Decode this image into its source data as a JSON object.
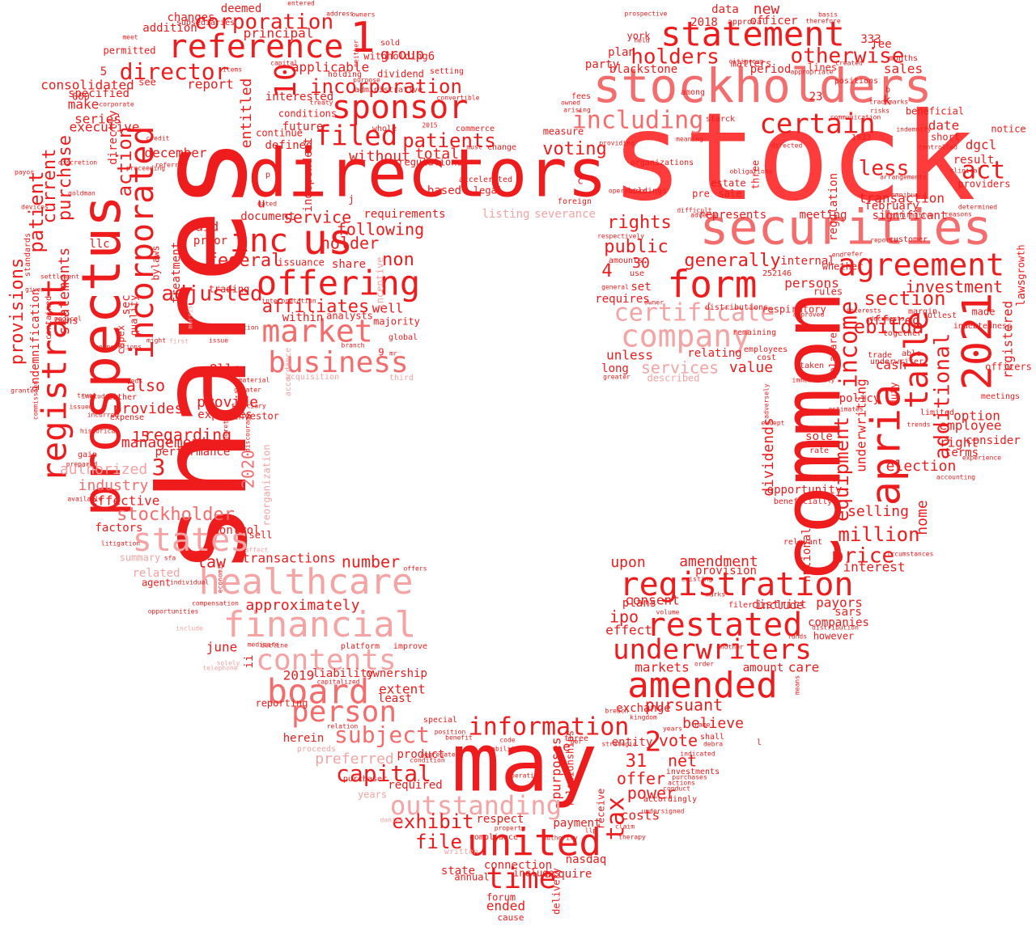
{
  "palette": {
    "red": "#ee1c1c",
    "bright": "#ff3b3b",
    "mid": "#f56c6c",
    "light": "#f5a3a3",
    "pale": "#f8c7c7"
  },
  "words": [
    "shares",
    "stock",
    "directors",
    "common",
    "prospectus",
    "stockholders",
    "securities",
    "may",
    "statement",
    "registrant",
    "reference",
    "apria",
    "incorporated",
    "2021",
    "us",
    "inc",
    "sponsor",
    "agreement",
    "form",
    "certain",
    "united",
    "registration",
    "amended",
    "restated",
    "underwriters",
    "healthcare",
    "financial",
    "offering",
    "market",
    "business",
    "states",
    "board",
    "person",
    "contents",
    "information",
    "company",
    "certificate",
    "including",
    "otherwise",
    "corporation",
    "director",
    "incorporation",
    "filed",
    "patients",
    "time",
    "outstanding",
    "subject",
    "capital",
    "exhibit",
    "file",
    "tax",
    "income",
    "table",
    "equipment",
    "million",
    "price",
    "section",
    "additional",
    "ebitda",
    "investment",
    "act",
    "less",
    "voting",
    "holders",
    "10",
    "1",
    "2",
    "3",
    "4",
    "30",
    "31",
    "2020",
    "2019",
    "adjusted",
    "affiliates",
    "also",
    "service",
    "federal",
    "non",
    "holder",
    "following",
    "public",
    "rights",
    "generally",
    "internal",
    "services",
    "value",
    "unless",
    "cash",
    "election",
    "selling",
    "dividends",
    "home",
    "management",
    "industry",
    "stockholder",
    "provide",
    "provides",
    "purchase",
    "current",
    "patient",
    "action",
    "directly",
    "provisions",
    "statements",
    "indemnification",
    "authorized",
    "effective",
    "factors",
    "summary",
    "related",
    "agent",
    "law",
    "transactions",
    "number",
    "approximately",
    "june",
    "liability",
    "ownership",
    "extent",
    "least",
    "preferred",
    "required",
    "product",
    "respect",
    "connection",
    "ended",
    "state",
    "annual",
    "forum",
    "cause",
    "pursuant",
    "believe",
    "vote",
    "net",
    "offer",
    "power",
    "costs",
    "payment",
    "nasdaq",
    "acquire",
    "upon",
    "amendment",
    "provision",
    "interest",
    "consent",
    "ipo",
    "effect",
    "markets",
    "exchange",
    "entity",
    "dgcl",
    "option",
    "employee",
    "right",
    "terms",
    "february",
    "date",
    "short",
    "beneficial",
    "new",
    "data",
    "officer",
    "approval",
    "2018",
    "plan",
    "york",
    "party",
    "blackstone",
    "period",
    "lines",
    "sales",
    "months",
    "fee",
    "group",
    "sold",
    "withholding",
    "dividend",
    "administrative",
    "setting",
    "december",
    "entitled",
    "interested",
    "future",
    "defined",
    "conditions",
    "continue",
    "independent",
    "without",
    "total",
    "based",
    "legal",
    "regulations",
    "requirements",
    "document",
    "paid",
    "prior",
    "share",
    "issuance",
    "within",
    "analysts",
    "majority",
    "global",
    "well",
    "respiratory",
    "persons",
    "rules",
    "whether",
    "include",
    "amount",
    "care",
    "however",
    "payors",
    "sars",
    "companies",
    "relating",
    "long",
    "described",
    "consolidated",
    "make",
    "series",
    "executive",
    "specified",
    "report",
    "applicable",
    "addition",
    "changes",
    "deemed",
    "permitted",
    "principal",
    "subsidiaries",
    "see",
    "treatment",
    "bylaws",
    "regarding",
    "15",
    "8llc",
    "expenses",
    "investor",
    "5",
    "000",
    "llc",
    "sec",
    "capex",
    "quality",
    "available",
    "gain",
    "performance",
    "control",
    "sell",
    "ii",
    "reporting",
    "herein",
    "proceeds",
    "purchaser",
    "years",
    "aggregate",
    "daniel",
    "written",
    "compliance",
    "includes",
    "delivery",
    "receive",
    "three",
    "measure",
    "three",
    "represents",
    "meeting",
    "significant",
    "transaction",
    "providers",
    "result",
    "notice",
    "registered",
    "laws",
    "growth",
    "officers",
    "made",
    "underwriting",
    "duty",
    "policy",
    "delaware",
    "regulation",
    "national",
    "opportunity",
    "beneficially",
    "relevant",
    "sole",
    "rate",
    "except",
    "adversely",
    "underwriter",
    "able",
    "trade",
    "margin",
    "fullest",
    "together",
    "interests",
    "documents",
    "circumstances",
    "experience",
    "accounting",
    "limited",
    "trends",
    "consider",
    "meetings",
    "indebtedness",
    "clinical",
    "determined",
    "affirmative",
    "reasons",
    "omnibus",
    "customer",
    "reports",
    "refer",
    "end",
    "risks",
    "trademarks",
    "positions",
    "basis",
    "therefore",
    "owners",
    "address",
    "entered",
    "neither",
    "holding",
    "purpose",
    "treaty",
    "corporate",
    "convertible",
    "commerce",
    "whole",
    "2015",
    "must",
    "change",
    "accelerated",
    "listing",
    "severance",
    "foreign",
    "operations",
    "holdings",
    "difficult",
    "adverse",
    "estate",
    "sale",
    "pre",
    "fees",
    "owned",
    "arising",
    "providing",
    "organizations",
    "meaning",
    "starck",
    "matters",
    "prospective",
    "held",
    "citigroup",
    "created",
    "appropriate",
    "communication",
    "indemnify",
    "controlled",
    "arrangements",
    "among",
    "directed",
    "1933",
    "obligations",
    "distributions",
    "remaining",
    "owner",
    "greater",
    "taken",
    "immediately",
    "estimates",
    "approved",
    "employees",
    "cost",
    "use",
    "amounts",
    "respectively",
    "general",
    "requires",
    "set",
    "offered",
    "333",
    "252146",
    "23",
    "6",
    "k",
    "b",
    "c",
    "e",
    "l",
    "u",
    "j",
    "p",
    "9",
    "mr",
    "third",
    "first",
    "incentive",
    "reorganization",
    "accordance",
    "acquisition",
    "distribution",
    "purposes",
    "relationships",
    "liabilities",
    "operating",
    "code",
    "per",
    "strategic",
    "order",
    "funds",
    "means",
    "breach",
    "kingdom",
    "another",
    "offers",
    "solely",
    "telephone",
    "capitalized",
    "medicare",
    "decline",
    "platform",
    "improve",
    "special",
    "relation",
    "position",
    "benefit",
    "condition",
    "maintain",
    "actions",
    "purchases",
    "indicated",
    "debra",
    "shall",
    "years",
    "investments",
    "accordingly",
    "conduct",
    "undersigned",
    "claim",
    "llp",
    "therapy",
    "authority",
    "property",
    "name",
    "existing",
    "marks",
    "plans",
    "volume",
    "filer",
    "district",
    "expense",
    "either",
    "greater",
    "material",
    "sfa",
    "opportunities",
    "include",
    "compensation",
    "individual",
    "affect",
    "economic",
    "litigation",
    "prepared",
    "included",
    "historical",
    "incurred",
    "trust",
    "granted",
    "payor",
    "commission",
    "standards",
    "settlement",
    "devices",
    "given",
    "contained",
    "owns",
    "medical",
    "trading",
    "interpretation",
    "branch",
    "needs",
    "corporations",
    "morris",
    "might",
    "issue",
    "issued",
    "rule",
    "fiduciary",
    "discourage",
    "thereto",
    "description",
    "proceeding",
    "discretion",
    "goldman",
    "referred",
    "meet",
    "credit",
    "items",
    "capital",
    "dated",
    "enable",
    "various",
    "full",
    "whose",
    "treatment",
    "increase",
    "certain",
    "open",
    "direct",
    "term",
    "hong",
    "qualified",
    "member",
    "expected",
    "support",
    "lower",
    "associated",
    "agreements",
    "activities",
    "services",
    "holders",
    "gives"
  ]
}
